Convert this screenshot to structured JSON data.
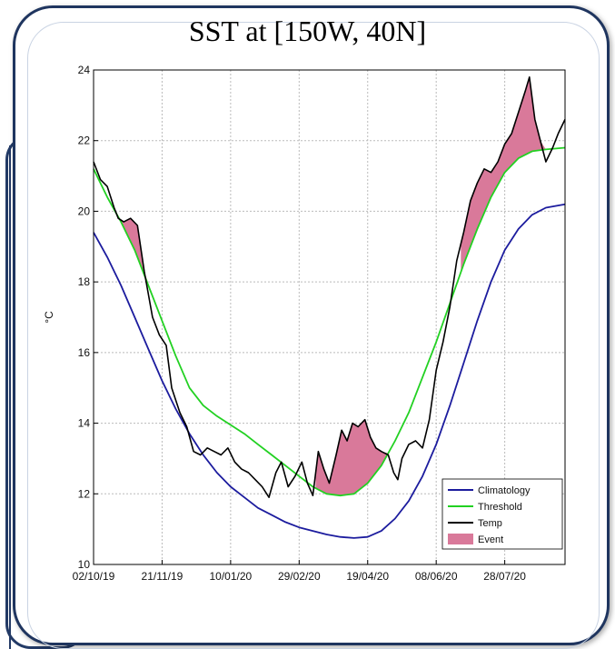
{
  "chart_data": {
    "type": "line",
    "title": "SST at [150W, 40N]",
    "ylabel": "°C",
    "xlabel": "",
    "ylim": [
      10,
      24
    ],
    "yticks": [
      10,
      12,
      14,
      16,
      18,
      20,
      22,
      24
    ],
    "xlim": [
      "2019-10-02",
      "2020-09-10"
    ],
    "xticks": [
      {
        "date": "2019-10-02",
        "label": "02/10/19"
      },
      {
        "date": "2019-11-21",
        "label": "21/11/19"
      },
      {
        "date": "2020-01-10",
        "label": "10/01/20"
      },
      {
        "date": "2020-02-29",
        "label": "29/02/20"
      },
      {
        "date": "2020-04-19",
        "label": "19/04/20"
      },
      {
        "date": "2020-06-08",
        "label": "08/06/20"
      },
      {
        "date": "2020-07-28",
        "label": "28/07/20"
      }
    ],
    "grid": true,
    "legend_position": "bottom-right",
    "series": [
      {
        "name": "Climatology",
        "color": "#1c1c9e",
        "points": [
          [
            "2019-10-02",
            19.4
          ],
          [
            "2019-10-12",
            18.7
          ],
          [
            "2019-10-22",
            17.9
          ],
          [
            "2019-11-01",
            17.0
          ],
          [
            "2019-11-11",
            16.1
          ],
          [
            "2019-11-21",
            15.2
          ],
          [
            "2019-12-01",
            14.4
          ],
          [
            "2019-12-11",
            13.7
          ],
          [
            "2019-12-21",
            13.1
          ],
          [
            "2019-12-31",
            12.6
          ],
          [
            "2020-01-10",
            12.2
          ],
          [
            "2020-01-20",
            11.9
          ],
          [
            "2020-01-30",
            11.6
          ],
          [
            "2020-02-09",
            11.4
          ],
          [
            "2020-02-19",
            11.2
          ],
          [
            "2020-02-29",
            11.05
          ],
          [
            "2020-03-10",
            10.95
          ],
          [
            "2020-03-20",
            10.85
          ],
          [
            "2020-03-30",
            10.78
          ],
          [
            "2020-04-09",
            10.75
          ],
          [
            "2020-04-19",
            10.78
          ],
          [
            "2020-04-29",
            10.95
          ],
          [
            "2020-05-09",
            11.3
          ],
          [
            "2020-05-19",
            11.8
          ],
          [
            "2020-05-29",
            12.5
          ],
          [
            "2020-06-08",
            13.4
          ],
          [
            "2020-06-18",
            14.5
          ],
          [
            "2020-06-28",
            15.7
          ],
          [
            "2020-07-08",
            16.9
          ],
          [
            "2020-07-18",
            18.0
          ],
          [
            "2020-07-28",
            18.9
          ],
          [
            "2020-08-07",
            19.5
          ],
          [
            "2020-08-17",
            19.9
          ],
          [
            "2020-08-27",
            20.1
          ],
          [
            "2020-09-10",
            20.2
          ]
        ]
      },
      {
        "name": "Threshold",
        "color": "#22d122",
        "points": [
          [
            "2019-10-02",
            21.2
          ],
          [
            "2019-10-12",
            20.4
          ],
          [
            "2019-10-22",
            19.7
          ],
          [
            "2019-11-01",
            18.9
          ],
          [
            "2019-11-11",
            17.9
          ],
          [
            "2019-11-21",
            16.9
          ],
          [
            "2019-12-01",
            15.9
          ],
          [
            "2019-12-11",
            15.0
          ],
          [
            "2019-12-21",
            14.5
          ],
          [
            "2019-12-31",
            14.2
          ],
          [
            "2020-01-10",
            13.95
          ],
          [
            "2020-01-20",
            13.7
          ],
          [
            "2020-01-30",
            13.4
          ],
          [
            "2020-02-09",
            13.1
          ],
          [
            "2020-02-19",
            12.8
          ],
          [
            "2020-02-29",
            12.5
          ],
          [
            "2020-03-10",
            12.2
          ],
          [
            "2020-03-20",
            12.0
          ],
          [
            "2020-03-30",
            11.95
          ],
          [
            "2020-04-09",
            12.0
          ],
          [
            "2020-04-19",
            12.3
          ],
          [
            "2020-04-29",
            12.8
          ],
          [
            "2020-05-09",
            13.5
          ],
          [
            "2020-05-19",
            14.3
          ],
          [
            "2020-05-29",
            15.3
          ],
          [
            "2020-06-08",
            16.3
          ],
          [
            "2020-06-18",
            17.4
          ],
          [
            "2020-06-28",
            18.5
          ],
          [
            "2020-07-08",
            19.5
          ],
          [
            "2020-07-18",
            20.4
          ],
          [
            "2020-07-28",
            21.1
          ],
          [
            "2020-08-07",
            21.5
          ],
          [
            "2020-08-17",
            21.7
          ],
          [
            "2020-08-27",
            21.75
          ],
          [
            "2020-09-10",
            21.8
          ]
        ]
      },
      {
        "name": "Temp",
        "color": "#000000",
        "points": [
          [
            "2019-10-02",
            21.4
          ],
          [
            "2019-10-07",
            20.9
          ],
          [
            "2019-10-12",
            20.7
          ],
          [
            "2019-10-17",
            20.1
          ],
          [
            "2019-10-20",
            19.8
          ],
          [
            "2019-10-24",
            19.7
          ],
          [
            "2019-10-29",
            19.8
          ],
          [
            "2019-11-03",
            19.6
          ],
          [
            "2019-11-08",
            18.3
          ],
          [
            "2019-11-14",
            17.0
          ],
          [
            "2019-11-19",
            16.5
          ],
          [
            "2019-11-24",
            16.2
          ],
          [
            "2019-11-28",
            15.0
          ],
          [
            "2019-12-04",
            14.3
          ],
          [
            "2019-12-09",
            13.9
          ],
          [
            "2019-12-14",
            13.2
          ],
          [
            "2019-12-19",
            13.1
          ],
          [
            "2019-12-24",
            13.3
          ],
          [
            "2019-12-29",
            13.2
          ],
          [
            "2020-01-03",
            13.1
          ],
          [
            "2020-01-08",
            13.3
          ],
          [
            "2020-01-13",
            12.9
          ],
          [
            "2020-01-18",
            12.7
          ],
          [
            "2020-01-23",
            12.6
          ],
          [
            "2020-01-28",
            12.4
          ],
          [
            "2020-02-02",
            12.2
          ],
          [
            "2020-02-07",
            11.9
          ],
          [
            "2020-02-12",
            12.6
          ],
          [
            "2020-02-16",
            12.9
          ],
          [
            "2020-02-21",
            12.2
          ],
          [
            "2020-02-26",
            12.5
          ],
          [
            "2020-03-02",
            12.9
          ],
          [
            "2020-03-06",
            12.3
          ],
          [
            "2020-03-10",
            11.95
          ],
          [
            "2020-03-14",
            13.2
          ],
          [
            "2020-03-18",
            12.7
          ],
          [
            "2020-03-22",
            12.3
          ],
          [
            "2020-03-27",
            13.1
          ],
          [
            "2020-03-31",
            13.8
          ],
          [
            "2020-04-04",
            13.5
          ],
          [
            "2020-04-08",
            14.0
          ],
          [
            "2020-04-12",
            13.9
          ],
          [
            "2020-04-17",
            14.1
          ],
          [
            "2020-04-21",
            13.6
          ],
          [
            "2020-04-25",
            13.3
          ],
          [
            "2020-04-29",
            13.2
          ],
          [
            "2020-05-04",
            13.1
          ],
          [
            "2020-05-08",
            12.6
          ],
          [
            "2020-05-11",
            12.4
          ],
          [
            "2020-05-14",
            13.0
          ],
          [
            "2020-05-19",
            13.4
          ],
          [
            "2020-05-24",
            13.5
          ],
          [
            "2020-05-29",
            13.3
          ],
          [
            "2020-06-03",
            14.1
          ],
          [
            "2020-06-08",
            15.5
          ],
          [
            "2020-06-13",
            16.3
          ],
          [
            "2020-06-18",
            17.3
          ],
          [
            "2020-06-23",
            18.6
          ],
          [
            "2020-06-28",
            19.4
          ],
          [
            "2020-07-03",
            20.3
          ],
          [
            "2020-07-08",
            20.8
          ],
          [
            "2020-07-13",
            21.2
          ],
          [
            "2020-07-18",
            21.1
          ],
          [
            "2020-07-23",
            21.4
          ],
          [
            "2020-07-28",
            21.9
          ],
          [
            "2020-08-02",
            22.2
          ],
          [
            "2020-08-07",
            22.8
          ],
          [
            "2020-08-12",
            23.4
          ],
          [
            "2020-08-15",
            23.8
          ],
          [
            "2020-08-19",
            22.6
          ],
          [
            "2020-08-23",
            22.0
          ],
          [
            "2020-08-27",
            21.4
          ],
          [
            "2020-09-01",
            21.8
          ],
          [
            "2020-09-05",
            22.2
          ],
          [
            "2020-09-10",
            22.6
          ]
        ]
      }
    ],
    "events": {
      "name": "Event",
      "color": "#d9799a",
      "periods": [
        [
          "2019-10-20",
          "2019-11-16"
        ],
        [
          "2020-03-12",
          "2020-05-08"
        ],
        [
          "2020-06-26",
          "2020-08-29"
        ]
      ]
    }
  }
}
